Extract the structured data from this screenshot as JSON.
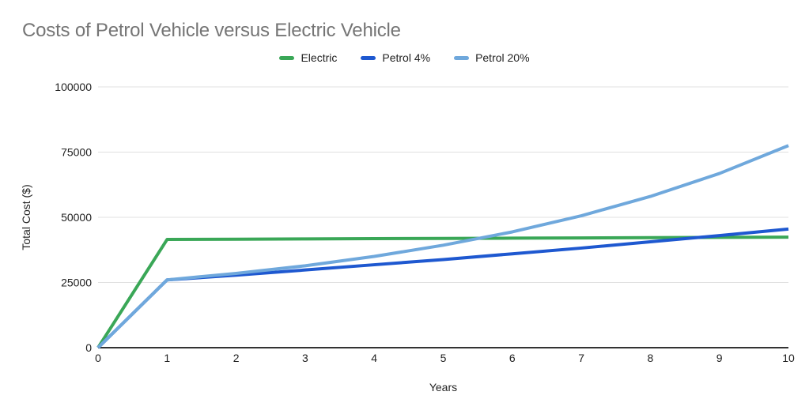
{
  "title": {
    "text": "Costs of Petrol Vehicle versus Electric Vehicle"
  },
  "axes": {
    "x_title": "Years",
    "y_title": "Total Cost ($)"
  },
  "colors": {
    "background": "#ffffff",
    "title_text": "#757575",
    "tick_text": "#222222",
    "axis_line": "#333333",
    "gridline": "#e0e0e0",
    "electric_green": "#3aa757",
    "petrol4_blue": "#1e58d0",
    "petrol20_lightblue": "#6fa8dc"
  },
  "chart_data": {
    "type": "line",
    "title": "Costs of Petrol Vehicle versus Electric Vehicle",
    "xlabel": "Years",
    "ylabel": "Total Cost ($)",
    "x": [
      0,
      1,
      2,
      3,
      4,
      5,
      6,
      7,
      8,
      9,
      10
    ],
    "series": [
      {
        "name": "Electric",
        "color": "#3aa757",
        "values": [
          0,
          41500,
          41600,
          41700,
          41800,
          41900,
          42000,
          42100,
          42200,
          42300,
          42400
        ]
      },
      {
        "name": "Petrol 4%",
        "color": "#1e58d0",
        "values": [
          0,
          26000,
          27800,
          29800,
          31800,
          33800,
          36000,
          38200,
          40600,
          43000,
          45500
        ]
      },
      {
        "name": "Petrol 20%",
        "color": "#6fa8dc",
        "values": [
          0,
          26000,
          28500,
          31400,
          35000,
          39300,
          44400,
          50600,
          58000,
          66800,
          77500
        ]
      }
    ],
    "xlim": [
      0,
      10
    ],
    "ylim": [
      0,
      100000
    ],
    "x_ticks": [
      0,
      1,
      2,
      3,
      4,
      5,
      6,
      7,
      8,
      9,
      10
    ],
    "y_ticks": [
      0,
      25000,
      50000,
      75000,
      100000
    ],
    "grid": "horizontal-only",
    "legend_position": "top",
    "line_width": 4
  }
}
